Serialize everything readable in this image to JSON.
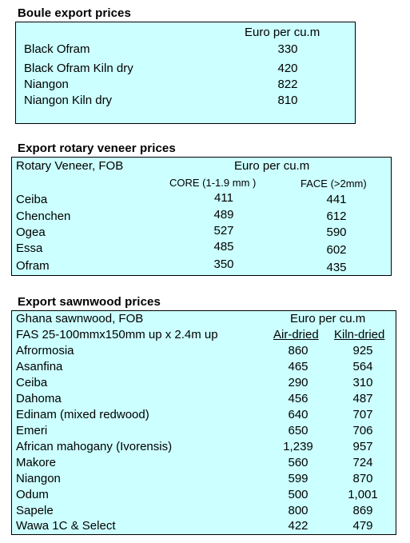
{
  "boule": {
    "title": "Boule export prices",
    "unit_header": "Euro per cu.m",
    "rows": [
      {
        "name": "Black Ofram",
        "value": "330"
      },
      {
        "name": "Black Ofram  Kiln dry",
        "value": "420"
      },
      {
        "name": "Niangon",
        "value": "822"
      },
      {
        "name": "Niangon Kiln dry",
        "value": "810"
      }
    ]
  },
  "veneer": {
    "title": "Export rotary veneer prices",
    "label": "Rotary Veneer,  FOB",
    "unit_header": "Euro  per cu.m",
    "col_core": "CORE (1-1.9 mm )",
    "col_face": "FACE (>2mm)",
    "rows": [
      {
        "name": "Ceiba",
        "core": "411",
        "face": "441"
      },
      {
        "name": "Chenchen",
        "core": "489",
        "face": "612"
      },
      {
        "name": "Ogea",
        "core": "527",
        "face": "590"
      },
      {
        "name": "Essa",
        "core": "485",
        "face": "602"
      },
      {
        "name": "Ofram",
        "core": "350",
        "face": "435"
      }
    ]
  },
  "sawn": {
    "title": "Export sawnwood prices",
    "label": "Ghana sawnwood, FOB",
    "unit_header": "Euro per cu.m",
    "spec": "FAS 25-100mmx150mm up x 2.4m up",
    "col_air": "Air-dried",
    "col_kiln": "Kiln-dried",
    "rows": [
      {
        "name": "Afrormosia",
        "air": "860",
        "kiln": "925"
      },
      {
        "name": "Asanfina",
        "air": "465",
        "kiln": "564"
      },
      {
        "name": "Ceiba",
        "air": "290",
        "kiln": "310"
      },
      {
        "name": "Dahoma",
        "air": "456",
        "kiln": "487"
      },
      {
        "name": "Edinam (mixed redwood)",
        "air": "640",
        "kiln": "707"
      },
      {
        "name": "Emeri",
        "air": "650",
        "kiln": "706"
      },
      {
        "name": "African mahogany (Ivorensis)",
        "air": "1,239",
        "kiln": "957"
      },
      {
        "name": "Makore",
        "air": "560",
        "kiln": "724"
      },
      {
        "name": "Niangon",
        "air": "599",
        "kiln": "870"
      },
      {
        "name": "Odum",
        "air": "500",
        "kiln": "1,001"
      },
      {
        "name": "Sapele",
        "air": "800",
        "kiln": "869"
      },
      {
        "name": "Wawa 1C & Select",
        "air": "422",
        "kiln": "479"
      }
    ]
  }
}
